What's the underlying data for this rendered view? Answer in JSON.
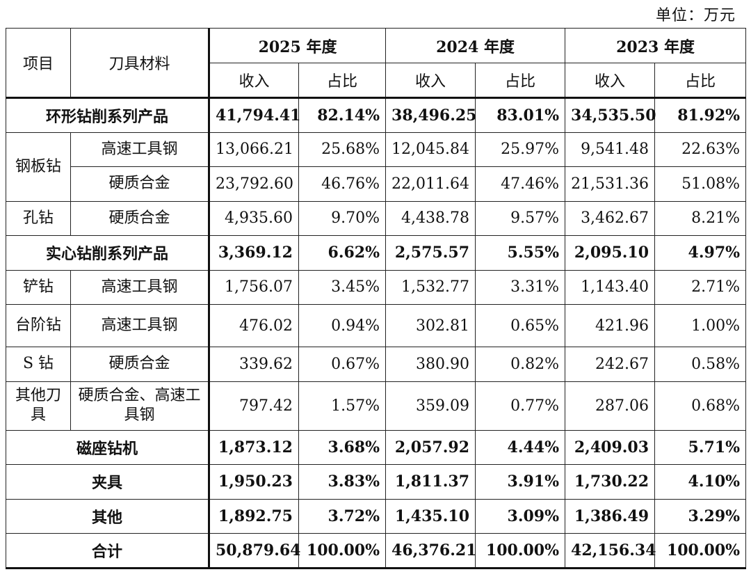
{
  "unit_label": "单位：万元",
  "header": {
    "item": "项目",
    "material": "刀具材料",
    "years": [
      "2025 年度",
      "2024 年度",
      "2023 年度"
    ],
    "revenue": "收入",
    "ratio": "占比"
  },
  "rows": [
    {
      "group": "环形钻削系列产品",
      "bold": true,
      "v": [
        "41,794.41",
        "82.14%",
        "38,496.25",
        "83.01%",
        "34,535.50",
        "81.92%"
      ]
    },
    {
      "item": "钢板钻",
      "material": "高速工具钢",
      "v": [
        "13,066.21",
        "25.68%",
        "12,045.84",
        "25.97%",
        "9,541.48",
        "22.63%"
      ]
    },
    {
      "material": "硬质合金",
      "v": [
        "23,792.60",
        "46.76%",
        "22,011.64",
        "47.46%",
        "21,531.36",
        "51.08%"
      ]
    },
    {
      "item": "孔钻",
      "material": "硬质合金",
      "v": [
        "4,935.60",
        "9.70%",
        "4,438.78",
        "9.57%",
        "3,462.67",
        "8.21%"
      ]
    },
    {
      "group": "实心钻削系列产品",
      "bold": true,
      "v": [
        "3,369.12",
        "6.62%",
        "2,575.57",
        "5.55%",
        "2,095.10",
        "4.97%"
      ]
    },
    {
      "item": "铲钻",
      "material": "高速工具钢",
      "v": [
        "1,756.07",
        "3.45%",
        "1,532.77",
        "3.31%",
        "1,143.40",
        "2.71%"
      ]
    },
    {
      "item": "台阶钻",
      "material": "高速工具钢",
      "v": [
        "476.02",
        "0.94%",
        "302.81",
        "0.65%",
        "421.96",
        "1.00%"
      ]
    },
    {
      "item": "S 钻",
      "material": "硬质合金",
      "v": [
        "339.62",
        "0.67%",
        "380.90",
        "0.82%",
        "242.67",
        "0.58%"
      ]
    },
    {
      "item": "其他刀具",
      "material": "硬质合金、高速工具钢",
      "v": [
        "797.42",
        "1.57%",
        "359.09",
        "0.77%",
        "287.06",
        "0.68%"
      ]
    },
    {
      "group": "磁座钻机",
      "bold": true,
      "v": [
        "1,873.12",
        "3.68%",
        "2,057.92",
        "4.44%",
        "2,409.03",
        "5.71%"
      ]
    },
    {
      "group": "夹具",
      "bold": true,
      "v": [
        "1,950.23",
        "3.83%",
        "1,811.37",
        "3.91%",
        "1,730.22",
        "4.10%"
      ]
    },
    {
      "group": "其他",
      "bold": true,
      "v": [
        "1,892.75",
        "3.72%",
        "1,435.10",
        "3.09%",
        "1,386.49",
        "3.29%"
      ]
    },
    {
      "group": "合计",
      "bold": true,
      "v": [
        "50,879.64",
        "100.00%",
        "46,376.21",
        "100.00%",
        "42,156.34",
        "100.00%"
      ]
    }
  ]
}
